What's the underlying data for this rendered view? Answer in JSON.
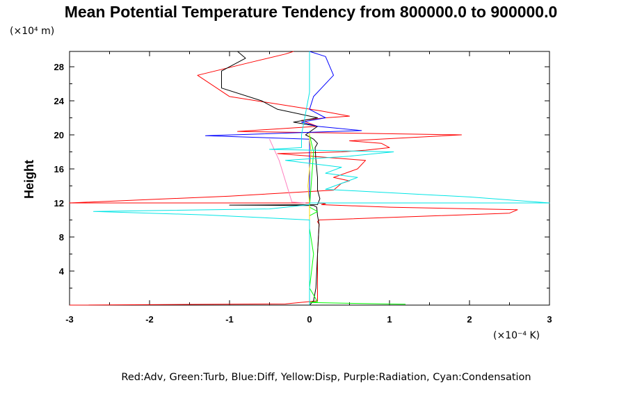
{
  "chart_data": {
    "type": "line",
    "title": "Mean Potential Temperature Tendency from 800000.0 to 900000.0",
    "ylabel": "Height",
    "y_unit": "(×10⁴ m)",
    "x_unit": "(×10⁻⁴ K)",
    "legend": "Red:Adv, Green:Turb, Blue:Diff, Yellow:Disp, Purple:Radiation, Cyan:Condensation",
    "xlim": [
      -3,
      3
    ],
    "ylim": [
      0,
      29.8
    ],
    "xticks": [
      "-3",
      "-2",
      "-1",
      "0",
      "1",
      "2",
      "3"
    ],
    "yticks": [
      "4",
      "8",
      "12",
      "16",
      "20",
      "24",
      "28"
    ],
    "grid": false,
    "series": [
      {
        "color": "#ff0000",
        "x": [
          -3.0,
          -0.3,
          0.1,
          0.1,
          0.1,
          0.12,
          0.1,
          0.12,
          2.5,
          2.6,
          1.0,
          0.15,
          0.2,
          0.1,
          -3.0,
          -1.0,
          0.3,
          0.4,
          0.5,
          0.3,
          0.6,
          0.7,
          -0.4,
          0.4,
          0.7,
          1.0,
          0.9,
          0.5,
          1.9,
          -0.9,
          0.1,
          -0.1,
          0.2,
          0.5,
          0.15,
          -1.0,
          -1.4,
          -0.7,
          -0.3,
          -0.2
        ],
        "y": [
          0,
          0.15,
          0.5,
          2,
          6,
          9.5,
          9.8,
          10,
          10.8,
          11.2,
          11.5,
          11.8,
          11.9,
          12.0,
          12.0,
          12.8,
          13.5,
          14.3,
          14.6,
          15.0,
          16.0,
          17.0,
          17.8,
          18.0,
          18.2,
          18.5,
          19.0,
          19.3,
          20.0,
          20.4,
          21.0,
          21.7,
          22.0,
          22.2,
          22.8,
          24.5,
          27.0,
          28.6,
          29.5,
          29.8
        ]
      },
      {
        "color": "#000000",
        "x": [
          0,
          0.05,
          0.08,
          0.1,
          0.12,
          0.1,
          0.09,
          0.05,
          -1.0,
          0.1,
          0.13,
          0.1,
          0.1,
          0.08,
          0.07,
          0.1,
          0.05,
          -0.05,
          0.1,
          -0.2,
          0.1,
          -0.4,
          -0.6,
          -1.1,
          -1.1,
          -0.8,
          -0.9
        ],
        "y": [
          0,
          0.5,
          2,
          6,
          9.5,
          10.5,
          11.5,
          11.7,
          11.75,
          11.8,
          12.5,
          13.5,
          15.0,
          17.0,
          18.5,
          19.0,
          19.5,
          20.0,
          21.0,
          21.5,
          22.0,
          23.0,
          24.0,
          25.5,
          27.5,
          29.0,
          29.8
        ]
      },
      {
        "color": "#0000ff",
        "x": [
          0,
          0,
          0,
          -1.3,
          0.65,
          0.1,
          -0.1,
          0.2,
          0.0,
          0.05,
          0.3,
          0.2,
          0.0
        ],
        "y": [
          0,
          10,
          19.5,
          19.9,
          20.5,
          21.0,
          21.5,
          22.0,
          23.0,
          24.5,
          27.0,
          29.2,
          29.8
        ]
      },
      {
        "color": "#00ff00",
        "x": [
          1.2,
          0.0,
          0.1,
          0.0,
          0.05,
          0.0,
          0.0,
          0.1,
          0.0,
          0.05,
          0.0
        ],
        "y": [
          0.1,
          0.3,
          0.4,
          2,
          6,
          9,
          10.5,
          11.0,
          11.5,
          18,
          20
        ]
      },
      {
        "color": "#ffd700",
        "x": [
          0.0,
          0.0,
          -0.02,
          0.0,
          0.02,
          0.0,
          0.0
        ],
        "y": [
          10,
          12,
          14,
          16,
          18,
          19.5,
          20.2
        ]
      },
      {
        "color": "#ff80c0",
        "x": [
          -0.5,
          -0.38,
          -0.22,
          -0.05
        ],
        "y": [
          19.5,
          17.0,
          12.1,
          12.0
        ]
      },
      {
        "color": "#00e5e5",
        "x": [
          0.0,
          0.0,
          0.0,
          -1.3,
          -2.7,
          -0.5,
          0.0,
          0.0,
          3.0,
          2.0,
          0.2,
          0.6,
          0.2,
          0.4,
          -0.3,
          0.5,
          1.05,
          -0.5,
          -0.1,
          -0.1,
          0.0,
          0.0
        ],
        "y": [
          0,
          9.7,
          10.0,
          10.6,
          11.0,
          11.3,
          11.8,
          12.0,
          12.0,
          12.7,
          13.6,
          15.0,
          15.5,
          16.2,
          17.0,
          17.5,
          18.0,
          18.3,
          18.5,
          20.0,
          25.0,
          29.8
        ]
      }
    ]
  }
}
